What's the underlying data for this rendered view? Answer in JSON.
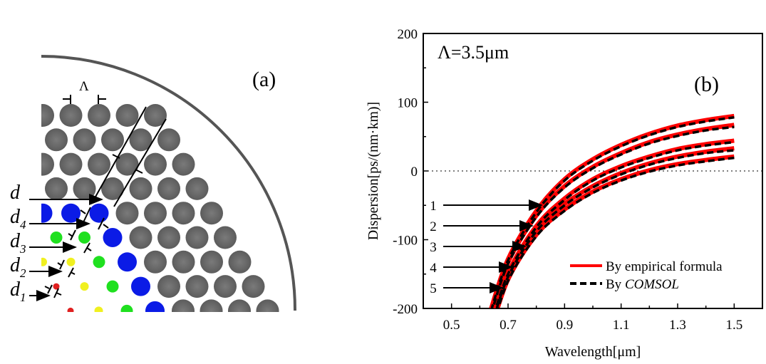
{
  "panel_a": {
    "label": "(a)",
    "pitch_label": "Λ",
    "diameter_labels": [
      "d",
      "d4",
      "d3",
      "d2",
      "d1"
    ],
    "colors": {
      "gray": "#666666",
      "d4": "#0b1be6",
      "d3": "#1fe01f",
      "d2": "#f0f020",
      "d1": "#e02020",
      "cladding": "#555555"
    }
  },
  "chart_data": {
    "type": "line",
    "panel_label": "(b)",
    "annotation": "Λ=3.5μm",
    "xlabel": "Wavelength[μm]",
    "ylabel": "Dispersion[ps/(nm·km)]",
    "xlim": [
      0.4,
      1.6
    ],
    "ylim": [
      -200,
      200
    ],
    "xticks": [
      0.5,
      0.7,
      0.9,
      1.1,
      1.3,
      1.5
    ],
    "yticks": [
      -200,
      -100,
      0,
      100,
      200
    ],
    "zero_line": "dotted",
    "grid": false,
    "legend": {
      "placement": "bottom-right",
      "entries": [
        {
          "name": "By empirical formula",
          "color": "#ff0000",
          "style": "solid"
        },
        {
          "name_prefix": "By ",
          "name_italic": "COMSOL",
          "color": "#000000",
          "style": "dashed"
        }
      ]
    },
    "curve_labels": [
      "1",
      "2",
      "3",
      "4",
      "5"
    ],
    "x": [
      0.64,
      0.7,
      0.8,
      0.9,
      1.0,
      1.1,
      1.2,
      1.3,
      1.4,
      1.5
    ],
    "series": [
      {
        "curve": "1",
        "method": "empirical",
        "values": [
          -200,
          -128,
          -58,
          -12,
          17,
          38,
          54,
          66,
          74,
          80
        ]
      },
      {
        "curve": "2",
        "method": "empirical",
        "values": [
          -205,
          -133,
          -65,
          -22,
          6,
          26,
          42,
          53,
          61,
          67
        ]
      },
      {
        "curve": "3",
        "method": "empirical",
        "values": [
          -220,
          -148,
          -80,
          -40,
          -12,
          7,
          21,
          32,
          39,
          44
        ]
      },
      {
        "curve": "4",
        "method": "empirical",
        "values": [
          -225,
          -152,
          -86,
          -48,
          -22,
          -3,
          11,
          21,
          28,
          33
        ]
      },
      {
        "curve": "5",
        "method": "empirical",
        "values": [
          -232,
          -158,
          -93,
          -56,
          -30,
          -12,
          1,
          10,
          16,
          21
        ]
      },
      {
        "curve": "1",
        "method": "COMSOL",
        "values": [
          -203,
          -130,
          -60,
          -14,
          15,
          36,
          52,
          64,
          72,
          78
        ]
      },
      {
        "curve": "2",
        "method": "COMSOL",
        "values": [
          -208,
          -135,
          -67,
          -24,
          4,
          24,
          40,
          51,
          59,
          64
        ]
      },
      {
        "curve": "3",
        "method": "COMSOL",
        "values": [
          -223,
          -150,
          -82,
          -42,
          -14,
          5,
          19,
          30,
          37,
          42
        ]
      },
      {
        "curve": "4",
        "method": "COMSOL",
        "values": [
          -228,
          -154,
          -88,
          -50,
          -24,
          -5,
          9,
          19,
          26,
          30
        ]
      },
      {
        "curve": "5",
        "method": "COMSOL",
        "values": [
          -235,
          -160,
          -95,
          -58,
          -32,
          -14,
          -1,
          8,
          14,
          19
        ]
      }
    ]
  }
}
